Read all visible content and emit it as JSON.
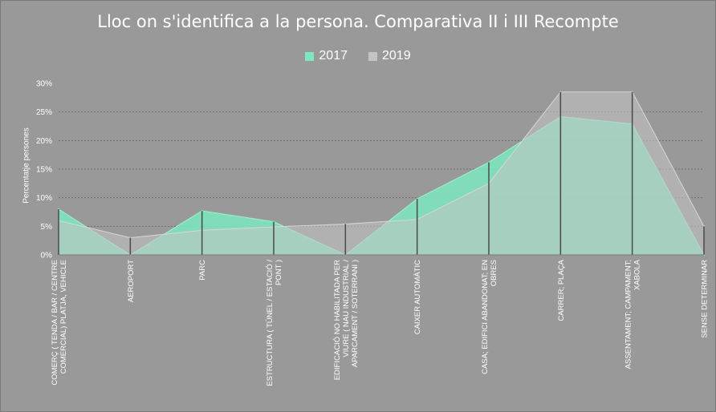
{
  "chart_data": {
    "type": "area",
    "title": "Lloc on s'identifica a la persona. Comparativa II i III Recompte",
    "ylabel": "Percentatje  persones",
    "ylim": [
      0,
      30
    ],
    "yticks": [
      "0%",
      "5%",
      "10%",
      "15%",
      "20%",
      "25%",
      "30%"
    ],
    "grid": true,
    "legend_position": "top",
    "categories": [
      [
        "COMERÇ ( TENDA / BAR / CENTRE",
        "COMERCIAL) PLATJA, VEHICLE"
      ],
      [
        "AEROPORT"
      ],
      [
        "PARC"
      ],
      [
        "ESTRUCTURA ( TÚNEL / ESTACIÓ /",
        "PONT )"
      ],
      [
        "EDIFICACIÓ NO HABILITADA PER",
        "VIURE  ( NAU INDUSTRIAL /",
        "APARCAMENT / SOTERRANI )"
      ],
      [
        "CAIXER AUTOMÀTIC"
      ],
      [
        "CASA; EDIFICI ABANDONAT; EN",
        "OBRES"
      ],
      [
        "CARRER; PLAÇA"
      ],
      [
        "ASSENTAMENT; CAMPAMENT;",
        "XABOLA"
      ],
      [
        "SENSE DETERMINAR"
      ]
    ],
    "series": [
      {
        "name": "2017",
        "color": "#7de8c0",
        "values": [
          8.0,
          0.0,
          7.7,
          5.8,
          0.0,
          9.8,
          16.2,
          24.2,
          22.9,
          0.0
        ]
      },
      {
        "name": "2019",
        "color": "#c4c4c4",
        "values": [
          6.0,
          3.0,
          4.3,
          4.9,
          5.4,
          6.2,
          12.5,
          28.5,
          28.5,
          5.0
        ]
      }
    ]
  }
}
